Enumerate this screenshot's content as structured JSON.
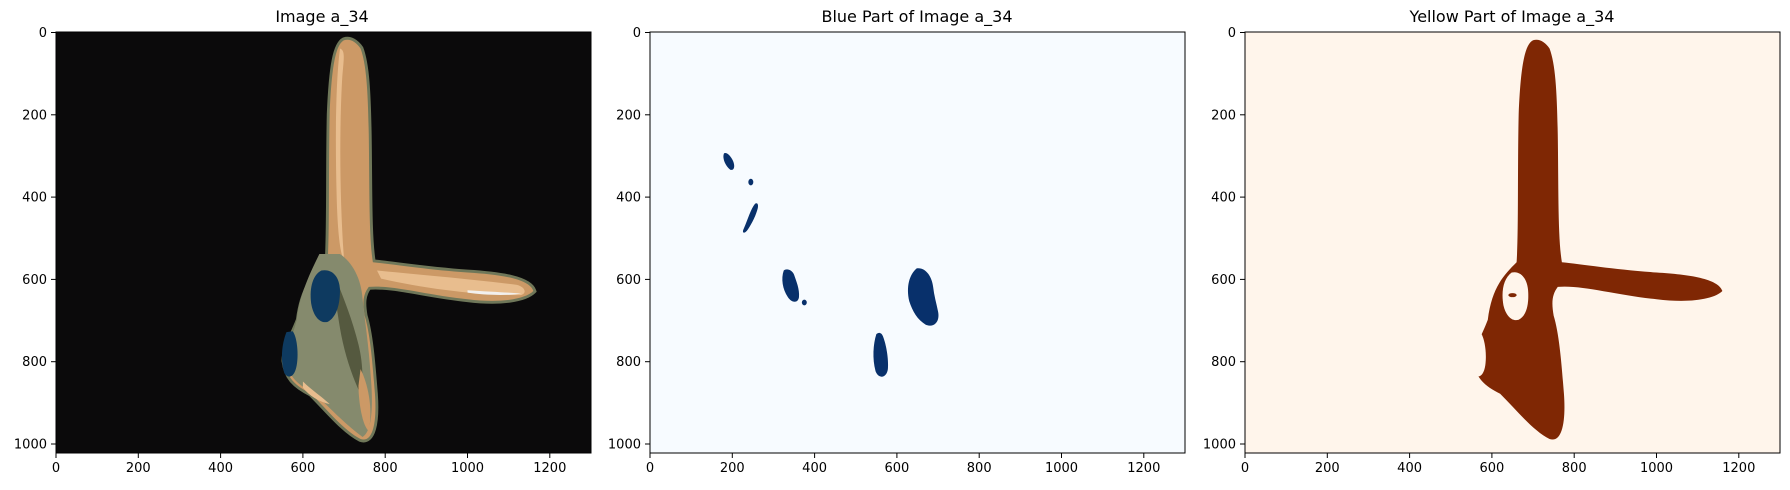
{
  "chart_data": [
    {
      "type": "image",
      "title": "Image a_34",
      "xlabel": "",
      "ylabel": "",
      "xlim": [
        0,
        1300
      ],
      "ylim": [
        1024,
        0
      ],
      "xticks": [
        0,
        200,
        400,
        600,
        800,
        1000,
        1200
      ],
      "yticks": [
        0,
        200,
        400,
        600,
        800,
        1000
      ],
      "grid": false,
      "colors": {
        "background": "#0b0a0b",
        "tan_light": "#e8bd8e",
        "tan": "#cc9966",
        "olive": "#858a6d",
        "olive_dark": "#55593f",
        "navy": "#0e3a60",
        "highlight": "#f2f0ee",
        "edge": "#6f7759"
      }
    },
    {
      "type": "image",
      "title": "Blue Part of Image a_34",
      "xlabel": "",
      "ylabel": "",
      "xlim": [
        0,
        1300
      ],
      "ylim": [
        1024,
        0
      ],
      "xticks": [
        0,
        200,
        400,
        600,
        800,
        1000,
        1200
      ],
      "yticks": [
        0,
        200,
        400,
        600,
        800,
        1000
      ],
      "grid": false,
      "colors": {
        "background": "#f7fbff",
        "mask": "#08306b"
      }
    },
    {
      "type": "image",
      "title": "Yellow Part of Image a_34",
      "xlabel": "",
      "ylabel": "",
      "xlim": [
        0,
        1300
      ],
      "ylim": [
        1024,
        0
      ],
      "xticks": [
        0,
        200,
        400,
        600,
        800,
        1000,
        1200
      ],
      "yticks": [
        0,
        200,
        400,
        600,
        800,
        1000
      ],
      "grid": false,
      "colors": {
        "background": "#fff5eb",
        "mask": "#7f2704"
      }
    }
  ]
}
